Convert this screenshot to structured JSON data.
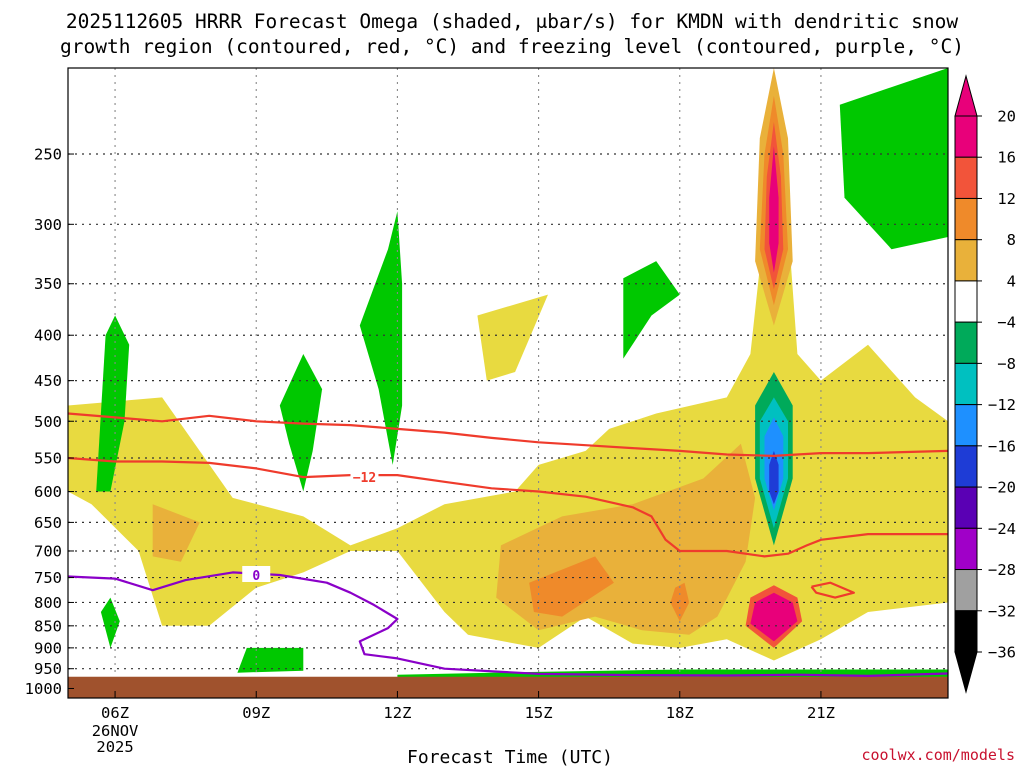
{
  "chart_data": {
    "type": "heatmap",
    "title_lines": [
      "2025112605 HRRR Forecast Omega (shaded, μbar/s) for KMDN with dendritic snow",
      "growth region (contoured, red, °C) and freezing level (contoured, purple, °C)"
    ],
    "xlabel": "Forecast Time (UTC)",
    "x_unit": "forecast hour",
    "xlim": [
      5,
      23.7
    ],
    "x_ticks": [
      {
        "value": 6,
        "label": "06Z",
        "sub": [
          "26NOV",
          "2025"
        ]
      },
      {
        "value": 9,
        "label": "09Z"
      },
      {
        "value": 12,
        "label": "12Z"
      },
      {
        "value": 15,
        "label": "15Z"
      },
      {
        "value": 18,
        "label": "18Z"
      },
      {
        "value": 21,
        "label": "21Z"
      }
    ],
    "y_unit": "hPa",
    "ylim": [
      1025,
      200
    ],
    "y_ticks": [
      250,
      300,
      350,
      400,
      450,
      500,
      550,
      600,
      650,
      700,
      750,
      800,
      850,
      900,
      950,
      1000
    ],
    "ground_level_hPa": 970,
    "colorbar": {
      "levels": [
        -36,
        -32,
        -28,
        -24,
        -20,
        -16,
        -12,
        -8,
        -4,
        4,
        8,
        12,
        16,
        20
      ],
      "labels": [
        "20",
        "16",
        "12",
        "8",
        "4",
        "−4",
        "−8",
        "−12",
        "−16",
        "−20",
        "−24",
        "−28",
        "−32",
        "−36"
      ]
    },
    "omega_regions": [
      {
        "level": 4,
        "points": [
          [
            5,
            480
          ],
          [
            7,
            470
          ],
          [
            8.5,
            610
          ],
          [
            10,
            640
          ],
          [
            11,
            690
          ],
          [
            12,
            660
          ],
          [
            13,
            620
          ],
          [
            14.5,
            600
          ],
          [
            15,
            560
          ],
          [
            16,
            540
          ],
          [
            16.5,
            510
          ],
          [
            17.5,
            490
          ],
          [
            19,
            470
          ],
          [
            19.5,
            420
          ],
          [
            19.8,
            300
          ],
          [
            20,
            230
          ],
          [
            20.3,
            300
          ],
          [
            20.5,
            420
          ],
          [
            21,
            450
          ],
          [
            22,
            410
          ],
          [
            23,
            470
          ],
          [
            23.7,
            500
          ],
          [
            23.7,
            800
          ],
          [
            22,
            820
          ],
          [
            21,
            880
          ],
          [
            20,
            930
          ],
          [
            19,
            880
          ],
          [
            18,
            900
          ],
          [
            17,
            890
          ],
          [
            16,
            830
          ],
          [
            15,
            900
          ],
          [
            13.5,
            870
          ],
          [
            13,
            820
          ],
          [
            12,
            700
          ],
          [
            11,
            700
          ],
          [
            10,
            740
          ],
          [
            9,
            770
          ],
          [
            8,
            850
          ],
          [
            7,
            850
          ],
          [
            6.5,
            700
          ],
          [
            5.5,
            620
          ],
          [
            5,
            600
          ]
        ]
      },
      {
        "level": 4,
        "points": [
          [
            13.7,
            380
          ],
          [
            15.2,
            360
          ],
          [
            14.5,
            440
          ],
          [
            13.9,
            450
          ]
        ]
      },
      {
        "level": 8,
        "points": [
          [
            6.8,
            620
          ],
          [
            7.8,
            650
          ],
          [
            7.4,
            720
          ],
          [
            6.8,
            710
          ]
        ]
      },
      {
        "level": 8,
        "points": [
          [
            14.2,
            690
          ],
          [
            15.5,
            640
          ],
          [
            17,
            620
          ],
          [
            18.5,
            580
          ],
          [
            19.3,
            530
          ],
          [
            19.6,
            610
          ],
          [
            19.4,
            720
          ],
          [
            18.8,
            830
          ],
          [
            18.2,
            870
          ],
          [
            17.2,
            860
          ],
          [
            16.2,
            830
          ],
          [
            15,
            860
          ],
          [
            14.1,
            790
          ]
        ]
      },
      {
        "level": 8,
        "points": [
          [
            19.7,
            240
          ],
          [
            20,
            200
          ],
          [
            20.3,
            240
          ],
          [
            20.4,
            330
          ],
          [
            20,
            390
          ],
          [
            19.6,
            330
          ]
        ]
      },
      {
        "level": 12,
        "points": [
          [
            14.8,
            760
          ],
          [
            16.2,
            710
          ],
          [
            16.6,
            760
          ],
          [
            15.5,
            830
          ],
          [
            14.9,
            820
          ]
        ]
      },
      {
        "level": 12,
        "points": [
          [
            19.8,
            250
          ],
          [
            20,
            215
          ],
          [
            20.2,
            250
          ],
          [
            20.3,
            320
          ],
          [
            20,
            370
          ],
          [
            19.7,
            320
          ]
        ]
      },
      {
        "level": 16,
        "points": [
          [
            19.85,
            265
          ],
          [
            20,
            230
          ],
          [
            20.15,
            265
          ],
          [
            20.2,
            320
          ],
          [
            20,
            355
          ],
          [
            19.8,
            320
          ]
        ]
      },
      {
        "level": 20,
        "points": [
          [
            19.9,
            280
          ],
          [
            20,
            245
          ],
          [
            20.1,
            280
          ],
          [
            20.1,
            315
          ],
          [
            20,
            340
          ],
          [
            19.9,
            315
          ]
        ]
      },
      {
        "level": 16,
        "points": [
          [
            19.5,
            790
          ],
          [
            20,
            765
          ],
          [
            20.5,
            790
          ],
          [
            20.6,
            840
          ],
          [
            20,
            900
          ],
          [
            19.4,
            850
          ]
        ]
      },
      {
        "level": 20,
        "points": [
          [
            19.6,
            800
          ],
          [
            20,
            780
          ],
          [
            20.4,
            800
          ],
          [
            20.5,
            840
          ],
          [
            20,
            885
          ],
          [
            19.5,
            845
          ]
        ]
      },
      {
        "level": 12,
        "points": [
          [
            17.9,
            770
          ],
          [
            18.1,
            760
          ],
          [
            18.2,
            800
          ],
          [
            18,
            840
          ],
          [
            17.8,
            800
          ]
        ]
      },
      {
        "level": -4,
        "points": [
          [
            5.6,
            600
          ],
          [
            5.8,
            400
          ],
          [
            6,
            380
          ],
          [
            6.3,
            410
          ],
          [
            6.2,
            500
          ],
          [
            5.9,
            600
          ]
        ]
      },
      {
        "level": -4,
        "points": [
          [
            5.7,
            820
          ],
          [
            5.9,
            790
          ],
          [
            6.1,
            840
          ],
          [
            5.9,
            900
          ]
        ]
      },
      {
        "level": -4,
        "points": [
          [
            9.5,
            480
          ],
          [
            10,
            420
          ],
          [
            10.4,
            460
          ],
          [
            10.2,
            540
          ],
          [
            10,
            600
          ],
          [
            9.7,
            530
          ]
        ]
      },
      {
        "level": -4,
        "points": [
          [
            11.2,
            390
          ],
          [
            11.8,
            320
          ],
          [
            12,
            290
          ],
          [
            12.1,
            350
          ],
          [
            12.1,
            480
          ],
          [
            11.9,
            560
          ],
          [
            11.6,
            460
          ]
        ]
      },
      {
        "level": -4,
        "points": [
          [
            16.8,
            345
          ],
          [
            17.5,
            330
          ],
          [
            18,
            360
          ],
          [
            17.4,
            380
          ],
          [
            16.8,
            425
          ]
        ]
      },
      {
        "level": -4,
        "points": [
          [
            21.4,
            220
          ],
          [
            23.7,
            200
          ],
          [
            23.7,
            310
          ],
          [
            22.5,
            320
          ],
          [
            21.5,
            280
          ]
        ]
      },
      {
        "level": -4,
        "points": [
          [
            8.8,
            900
          ],
          [
            10,
            900
          ],
          [
            10,
            955
          ],
          [
            8.6,
            960
          ]
        ]
      },
      {
        "level": -4,
        "points": [
          [
            12,
            965
          ],
          [
            14,
            960
          ],
          [
            18,
            952
          ],
          [
            23.7,
            952
          ],
          [
            23.7,
            975
          ],
          [
            12,
            975
          ]
        ]
      },
      {
        "level": -8,
        "points": [
          [
            19.6,
            480
          ],
          [
            20,
            440
          ],
          [
            20.4,
            480
          ],
          [
            20.4,
            580
          ],
          [
            20,
            690
          ],
          [
            19.6,
            580
          ]
        ]
      },
      {
        "level": -12,
        "points": [
          [
            19.7,
            500
          ],
          [
            20,
            470
          ],
          [
            20.3,
            500
          ],
          [
            20.3,
            580
          ],
          [
            20,
            660
          ],
          [
            19.7,
            580
          ]
        ]
      },
      {
        "level": -16,
        "points": [
          [
            19.8,
            520
          ],
          [
            20,
            495
          ],
          [
            20.2,
            520
          ],
          [
            20.2,
            580
          ],
          [
            20,
            630
          ],
          [
            19.8,
            580
          ]
        ]
      },
      {
        "level": -20,
        "points": [
          [
            19.9,
            560
          ],
          [
            20,
            540
          ],
          [
            20.1,
            560
          ],
          [
            20.1,
            600
          ],
          [
            20,
            620
          ],
          [
            19.9,
            600
          ]
        ]
      }
    ],
    "contour_lines": [
      {
        "name": "dendritic -12C upper",
        "color": "#ef3b2c",
        "label": "",
        "points": [
          [
            5,
            490
          ],
          [
            6,
            495
          ],
          [
            7,
            500
          ],
          [
            8,
            493
          ],
          [
            9,
            500
          ],
          [
            10,
            503
          ],
          [
            11,
            505
          ],
          [
            12,
            510
          ],
          [
            13,
            515
          ],
          [
            14,
            522
          ],
          [
            15,
            528
          ],
          [
            16,
            532
          ],
          [
            17,
            536
          ],
          [
            18,
            540
          ],
          [
            19,
            545
          ],
          [
            20,
            547
          ],
          [
            21,
            543
          ],
          [
            22,
            543
          ],
          [
            23.7,
            540
          ]
        ]
      },
      {
        "name": "dendritic -12C lower",
        "color": "#ef3b2c",
        "label": "−12",
        "label_at": [
          11.3,
          578
        ],
        "points": [
          [
            5,
            550
          ],
          [
            6,
            555
          ],
          [
            7,
            555
          ],
          [
            8,
            557
          ],
          [
            9,
            565
          ],
          [
            10,
            578
          ],
          [
            11,
            575
          ],
          [
            12,
            575
          ],
          [
            13,
            585
          ],
          [
            14,
            595
          ],
          [
            15,
            600
          ],
          [
            16,
            608
          ],
          [
            17,
            625
          ],
          [
            17.4,
            640
          ],
          [
            17.7,
            680
          ],
          [
            18,
            700
          ],
          [
            19,
            700
          ],
          [
            19.8,
            710
          ],
          [
            20.3,
            705
          ],
          [
            20.7,
            690
          ],
          [
            21,
            680
          ],
          [
            22,
            670
          ],
          [
            23.7,
            670
          ]
        ]
      },
      {
        "name": "dendritic small loop",
        "color": "#ef3b2c",
        "label": "",
        "points": [
          [
            20.8,
            768
          ],
          [
            21.2,
            760
          ],
          [
            21.7,
            780
          ],
          [
            21.3,
            790
          ],
          [
            20.9,
            780
          ],
          [
            20.8,
            768
          ]
        ]
      },
      {
        "name": "freezing level 0C",
        "color": "#8a00c8",
        "label": "0",
        "label_at": [
          9,
          745
        ],
        "points": [
          [
            5,
            748
          ],
          [
            6,
            752
          ],
          [
            6.8,
            775
          ],
          [
            7.5,
            755
          ],
          [
            8.5,
            740
          ],
          [
            9.5,
            745
          ],
          [
            10.5,
            760
          ],
          [
            11,
            780
          ],
          [
            11.5,
            805
          ],
          [
            12.0,
            835
          ],
          [
            11.8,
            855
          ],
          [
            11.2,
            885
          ],
          [
            11.3,
            915
          ],
          [
            12,
            925
          ],
          [
            13,
            950
          ],
          [
            15,
            963
          ],
          [
            17,
            966
          ],
          [
            19,
            967
          ],
          [
            20.5,
            965
          ],
          [
            22,
            968
          ],
          [
            23.7,
            962
          ]
        ]
      }
    ]
  },
  "credit": "coolwx.com/models"
}
